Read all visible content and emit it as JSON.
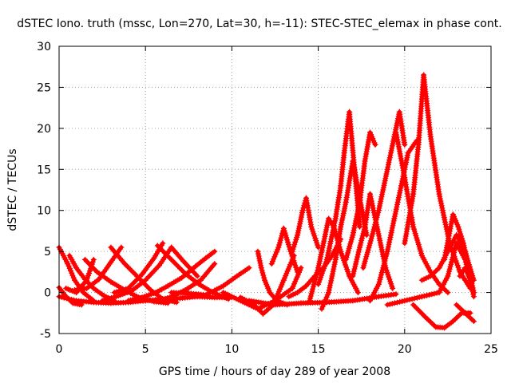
{
  "chart_data": {
    "type": "scatter",
    "title": "dSTEC Iono. truth (mssc, Lon=270, Lat=30, h=-11): STEC-STEC_elemax in phase cont.",
    "xlabel": "GPS time / hours of day 289 of year 2008",
    "ylabel": "dSTEC  / TECUs",
    "xlim": [
      0,
      25
    ],
    "ylim": [
      -5,
      30
    ],
    "xticks": [
      0,
      5,
      10,
      15,
      20,
      25
    ],
    "yticks": [
      -5,
      0,
      5,
      10,
      15,
      20,
      25,
      30
    ],
    "grid": true,
    "marker": "+",
    "color": "#ff0000",
    "series": [
      {
        "x": [
          0.0,
          0.5,
          0.9,
          1.4,
          2.0
        ],
        "y": [
          5.5,
          3.5,
          1.5,
          0.0,
          -1.0
        ]
      },
      {
        "x": [
          0.0,
          0.4,
          0.8,
          1.3
        ],
        "y": [
          0.6,
          -0.5,
          -1.3,
          -1.5
        ]
      },
      {
        "x": [
          0.6,
          1.0,
          1.5,
          2.0,
          2.6,
          3.2
        ],
        "y": [
          4.5,
          3.0,
          1.6,
          0.5,
          -0.4,
          -1.0
        ]
      },
      {
        "x": [
          0.4,
          1.0,
          1.6,
          2.0
        ],
        "y": [
          0.5,
          0.0,
          1.5,
          4.0
        ]
      },
      {
        "x": [
          1.5,
          2.2,
          3.0,
          3.8,
          4.6,
          5.5,
          6.3
        ],
        "y": [
          4.0,
          2.5,
          1.3,
          0.3,
          -0.6,
          -1.1,
          -1.3
        ]
      },
      {
        "x": [
          0.0,
          1.0,
          2.0,
          3.0,
          4.0,
          5.0,
          6.0,
          7.0,
          8.0,
          9.0,
          10.0
        ],
        "y": [
          -0.5,
          -1.0,
          -1.2,
          -1.3,
          -1.2,
          -1.0,
          -0.8,
          -0.7,
          -0.5,
          -0.6,
          -0.6
        ]
      },
      {
        "x": [
          0.9,
          1.6,
          2.3,
          3.0,
          3.6
        ],
        "y": [
          0.3,
          0.5,
          1.6,
          3.7,
          5.5
        ]
      },
      {
        "x": [
          3.0,
          3.8,
          4.6,
          5.3,
          6.0,
          6.8
        ],
        "y": [
          5.5,
          3.5,
          1.8,
          0.3,
          -0.8,
          -1.2
        ]
      },
      {
        "x": [
          2.5,
          3.3,
          4.2,
          5.0,
          5.8,
          6.5,
          7.2,
          8.0
        ],
        "y": [
          -1.0,
          -0.5,
          0.2,
          1.5,
          3.3,
          5.5,
          3.8,
          2.0
        ]
      },
      {
        "x": [
          3.2,
          4.0,
          4.8,
          5.5,
          6.0
        ],
        "y": [
          0.0,
          0.5,
          2.2,
          4.2,
          6.0
        ]
      },
      {
        "x": [
          5.7,
          6.5,
          7.3,
          8.1,
          8.9,
          9.8
        ],
        "y": [
          5.7,
          4.0,
          2.3,
          1.0,
          0.0,
          -0.8
        ]
      },
      {
        "x": [
          4.0,
          4.8,
          5.6,
          6.3,
          7.1,
          7.9,
          8.5,
          9.0
        ],
        "y": [
          -1.0,
          -0.6,
          0.0,
          0.8,
          1.8,
          3.2,
          4.2,
          5.0
        ]
      },
      {
        "x": [
          5.5,
          6.4,
          7.3,
          8.2,
          9.0
        ],
        "y": [
          -1.1,
          -0.6,
          0.3,
          1.5,
          3.5
        ]
      },
      {
        "x": [
          6.5,
          7.5,
          8.5,
          9.5,
          10.3,
          11.0
        ],
        "y": [
          0.0,
          -0.1,
          -0.3,
          0.8,
          2.0,
          3.0
        ]
      },
      {
        "x": [
          9.5,
          10.5,
          11.5,
          12.5,
          13.5,
          14.0
        ],
        "y": [
          0.0,
          -1.0,
          -2.0,
          -1.0,
          0.5,
          3.0
        ]
      },
      {
        "x": [
          10.5,
          11.3,
          11.8,
          12.4,
          13.0,
          13.6
        ],
        "y": [
          -0.6,
          -1.5,
          -2.6,
          -1.5,
          1.5,
          4.5
        ]
      },
      {
        "x": [
          11.5,
          11.7,
          11.9,
          12.2,
          12.6,
          13.2
        ],
        "y": [
          5.0,
          3.0,
          1.5,
          0.0,
          -1.0,
          -1.5
        ]
      },
      {
        "x": [
          11.0,
          12.5,
          14.0,
          15.5,
          17.0,
          18.5,
          19.5
        ],
        "y": [
          -1.0,
          -1.5,
          -1.3,
          -1.2,
          -1.0,
          -0.5,
          -0.2
        ]
      },
      {
        "x": [
          12.3,
          12.7,
          13.0,
          13.4,
          13.8
        ],
        "y": [
          3.5,
          5.5,
          7.8,
          5.0,
          2.5
        ]
      },
      {
        "x": [
          13.5,
          13.8,
          14.1,
          14.3,
          14.6,
          15.0
        ],
        "y": [
          5.0,
          7.0,
          10.0,
          11.5,
          8.0,
          5.5
        ]
      },
      {
        "x": [
          13.3,
          13.8,
          14.3,
          14.8,
          15.3,
          15.8,
          16.3
        ],
        "y": [
          -0.5,
          0.0,
          0.8,
          2.0,
          3.0,
          4.5,
          6.5
        ]
      },
      {
        "x": [
          14.5,
          15.0,
          15.3,
          15.6,
          15.9,
          16.3,
          16.8,
          17.3
        ],
        "y": [
          -1.0,
          3.0,
          6.0,
          9.0,
          8.0,
          5.0,
          2.0,
          0.0
        ]
      },
      {
        "x": [
          15.0,
          15.5,
          16.0,
          16.3,
          16.5,
          16.8,
          17.1,
          17.4
        ],
        "y": [
          1.0,
          4.0,
          9.0,
          13.0,
          17.0,
          22.0,
          15.0,
          8.0
        ]
      },
      {
        "x": [
          15.2,
          15.6,
          16.0,
          16.3,
          16.6,
          17.0,
          17.4,
          17.8
        ],
        "y": [
          -2.0,
          0.0,
          4.0,
          8.0,
          11.0,
          16.0,
          11.5,
          7.0
        ]
      },
      {
        "x": [
          16.6,
          17.0,
          17.4,
          17.7,
          18.0,
          18.3
        ],
        "y": [
          4.0,
          7.0,
          11.0,
          16.0,
          19.5,
          18.0
        ]
      },
      {
        "x": [
          17.0,
          17.4,
          17.7,
          18.0,
          18.4,
          18.9,
          19.3
        ],
        "y": [
          2.0,
          5.5,
          8.0,
          12.0,
          8.0,
          3.0,
          0.5
        ]
      },
      {
        "x": [
          17.6,
          18.0,
          18.5,
          19.0,
          19.4,
          19.7,
          20.0
        ],
        "y": [
          3.0,
          6.0,
          10.0,
          15.0,
          19.0,
          22.0,
          18.0
        ]
      },
      {
        "x": [
          18.0,
          18.5,
          19.0,
          19.4,
          19.8,
          20.2,
          20.7
        ],
        "y": [
          -1.0,
          1.0,
          5.0,
          9.0,
          13.0,
          17.0,
          18.5
        ]
      },
      {
        "x": [
          19.5,
          20.0,
          20.5,
          21.0,
          21.5,
          22.0,
          22.5
        ],
        "y": [
          19.5,
          14.0,
          8.0,
          4.5,
          2.5,
          1.0,
          0.0
        ]
      },
      {
        "x": [
          20.0,
          20.5,
          20.8,
          21.1,
          21.5,
          22.0,
          22.6,
          23.2,
          23.8
        ],
        "y": [
          6.0,
          12.0,
          18.0,
          26.5,
          19.0,
          12.0,
          6.0,
          2.5,
          0.5
        ]
      },
      {
        "x": [
          19.0,
          20.0,
          21.0,
          22.0,
          22.5,
          23.0,
          23.5,
          24.0
        ],
        "y": [
          -1.5,
          -1.0,
          -0.5,
          0.0,
          2.0,
          6.0,
          4.0,
          0.0
        ]
      },
      {
        "x": [
          20.5,
          21.2,
          21.8,
          22.3,
          22.8,
          23.3,
          23.8
        ],
        "y": [
          -1.5,
          -3.0,
          -4.2,
          -4.3,
          -3.5,
          -2.5,
          -2.5
        ]
      },
      {
        "x": [
          21.0,
          21.5,
          22.0,
          22.5,
          23.0,
          23.5,
          24.0
        ],
        "y": [
          1.5,
          2.0,
          3.0,
          5.0,
          7.0,
          5.0,
          1.5
        ]
      },
      {
        "x": [
          22.3,
          22.8,
          23.1,
          23.4,
          23.7,
          24.0
        ],
        "y": [
          4.0,
          9.5,
          8.0,
          6.0,
          3.0,
          0.0
        ]
      },
      {
        "x": [
          23.0,
          23.5,
          24.0
        ],
        "y": [
          -1.5,
          -2.5,
          -3.5
        ]
      },
      {
        "x": [
          23.2,
          23.5,
          23.8,
          24.0
        ],
        "y": [
          2.0,
          3.0,
          1.5,
          -0.5
        ]
      }
    ]
  }
}
